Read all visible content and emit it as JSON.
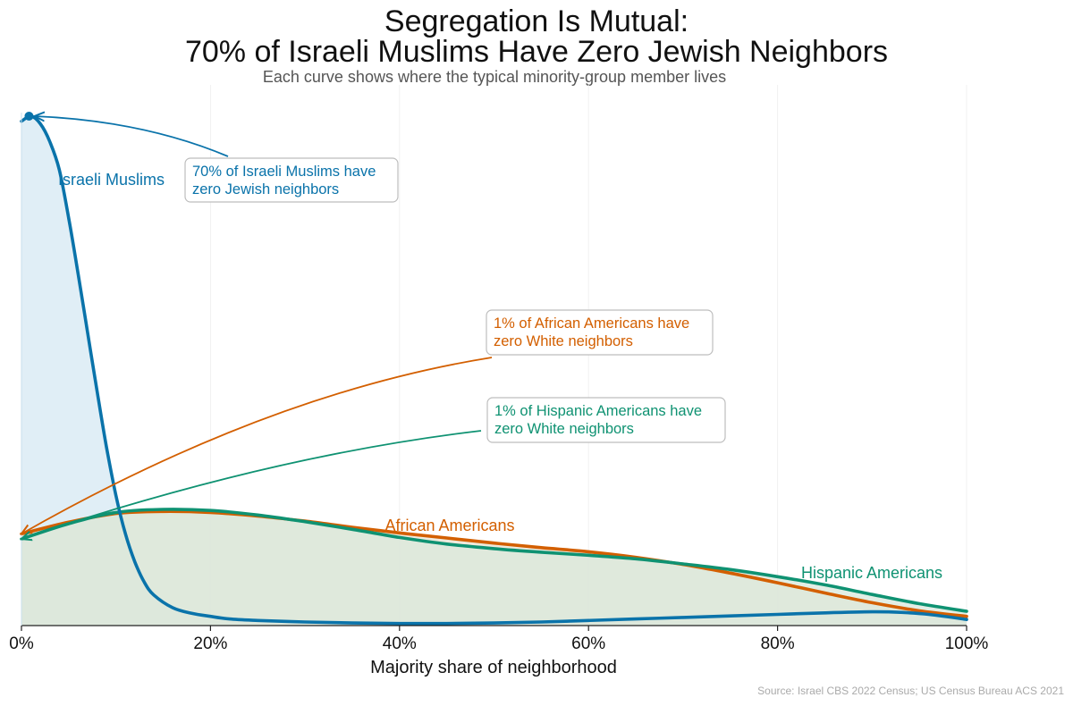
{
  "title_line1": "Segregation Is Mutual:",
  "title_line2": "70% of Israeli Muslims Have Zero Jewish Neighbors",
  "subtitle": "Each curve shows where the typical minority-group member lives",
  "source": "Source: Israel CBS 2022 Census; US Census Bureau ACS 2021",
  "chart_data": {
    "type": "area",
    "xlabel": "Majority share of neighborhood",
    "ylabel": "",
    "xlim": [
      0,
      100
    ],
    "ylim": [
      0,
      1.0
    ],
    "x_ticks": [
      0,
      20,
      40,
      60,
      80,
      100
    ],
    "x_tick_labels": [
      "0%",
      "20%",
      "40%",
      "60%",
      "80%",
      "100%"
    ],
    "grid": "vertical",
    "series": [
      {
        "name": "Israeli Muslims",
        "color": "#0a73aa",
        "fill": "#d6e8f3",
        "x": [
          0,
          1,
          2,
          3,
          4,
          5,
          6,
          7,
          8,
          9,
          10,
          11,
          12,
          13,
          14,
          16,
          18,
          20,
          22,
          25,
          30,
          35,
          40,
          45,
          50,
          55,
          60,
          65,
          70,
          75,
          80,
          85,
          90,
          93,
          96,
          100
        ],
        "y": [
          0.99,
          1.0,
          0.985,
          0.95,
          0.895,
          0.8,
          0.69,
          0.575,
          0.46,
          0.35,
          0.255,
          0.18,
          0.125,
          0.085,
          0.06,
          0.035,
          0.024,
          0.018,
          0.013,
          0.01,
          0.007,
          0.005,
          0.004,
          0.004,
          0.005,
          0.007,
          0.01,
          0.013,
          0.016,
          0.019,
          0.022,
          0.025,
          0.027,
          0.026,
          0.022,
          0.012
        ]
      },
      {
        "name": "African Americans",
        "color": "#d35f00",
        "fill": "#e9e2d0",
        "x": [
          0,
          5,
          10,
          15,
          20,
          25,
          30,
          35,
          40,
          45,
          50,
          55,
          60,
          65,
          70,
          75,
          80,
          85,
          90,
          95,
          100
        ],
        "y": [
          0.18,
          0.203,
          0.22,
          0.224,
          0.222,
          0.215,
          0.205,
          0.193,
          0.182,
          0.172,
          0.162,
          0.153,
          0.145,
          0.134,
          0.12,
          0.103,
          0.084,
          0.064,
          0.045,
          0.029,
          0.018
        ]
      },
      {
        "name": "Hispanic Americans",
        "color": "#0f9272",
        "fill": "#d9e8dc",
        "x": [
          0,
          5,
          10,
          15,
          20,
          25,
          30,
          35,
          40,
          45,
          50,
          55,
          60,
          65,
          70,
          75,
          80,
          85,
          90,
          95,
          100
        ],
        "y": [
          0.17,
          0.2,
          0.222,
          0.228,
          0.226,
          0.217,
          0.204,
          0.189,
          0.173,
          0.16,
          0.151,
          0.144,
          0.138,
          0.131,
          0.121,
          0.11,
          0.096,
          0.08,
          0.061,
          0.043,
          0.028
        ]
      }
    ],
    "labels": [
      {
        "text": "Israeli Muslims",
        "series": "Israeli Muslims"
      },
      {
        "text": "African Americans",
        "series": "African Americans"
      },
      {
        "text": "Hispanic Americans",
        "series": "Hispanic Americans"
      }
    ],
    "annotations": [
      {
        "lines": [
          "70% of Israeli Muslims have",
          "zero Jewish neighbors"
        ],
        "series": "Israeli Muslims",
        "points_to": [
          0.8,
          1.0
        ]
      },
      {
        "lines": [
          "1% of African Americans have",
          "zero White neighbors"
        ],
        "series": "African Americans",
        "points_to": [
          0,
          0.18
        ]
      },
      {
        "lines": [
          "1% of Hispanic Americans have",
          "zero White neighbors"
        ],
        "series": "Hispanic Americans",
        "points_to": [
          0,
          0.17
        ]
      }
    ]
  }
}
